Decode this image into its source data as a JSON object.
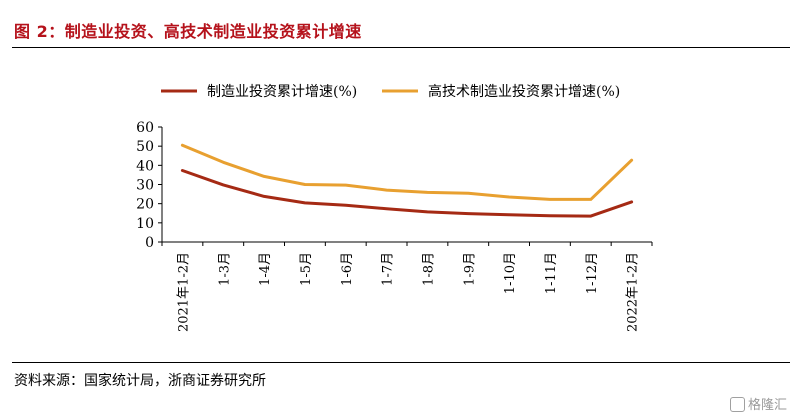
{
  "header": {
    "title": "图 2：制造业投资、高技术制造业投资累计增速"
  },
  "footer": {
    "source": "资料来源：国家统计局，浙商证券研究所",
    "watermark": "格隆汇"
  },
  "chart_data": {
    "type": "line",
    "categories": [
      "2021年1-2月",
      "1-3月",
      "1-4月",
      "1-5月",
      "1-6月",
      "1-7月",
      "1-8月",
      "1-9月",
      "1-10月",
      "1-11月",
      "1-12月",
      "2022年1-2月"
    ],
    "series": [
      {
        "name": "制造业投资累计增速(%)",
        "color": "#a52a14",
        "values": [
          37.3,
          29.8,
          23.8,
          20.4,
          19.2,
          17.3,
          15.7,
          14.8,
          14.2,
          13.7,
          13.5,
          20.9
        ]
      },
      {
        "name": "高技术制造业投资累计增速(%)",
        "color": "#e8a030",
        "values": [
          50.5,
          41.6,
          34.2,
          30.0,
          29.7,
          27.1,
          25.9,
          25.4,
          23.5,
          22.2,
          22.2,
          42.7
        ]
      }
    ],
    "y_ticks": [
      "0",
      "10",
      "20",
      "30",
      "40",
      "50",
      "60"
    ],
    "ylim": [
      0,
      60
    ],
    "grid": false,
    "legend_position": "top"
  }
}
